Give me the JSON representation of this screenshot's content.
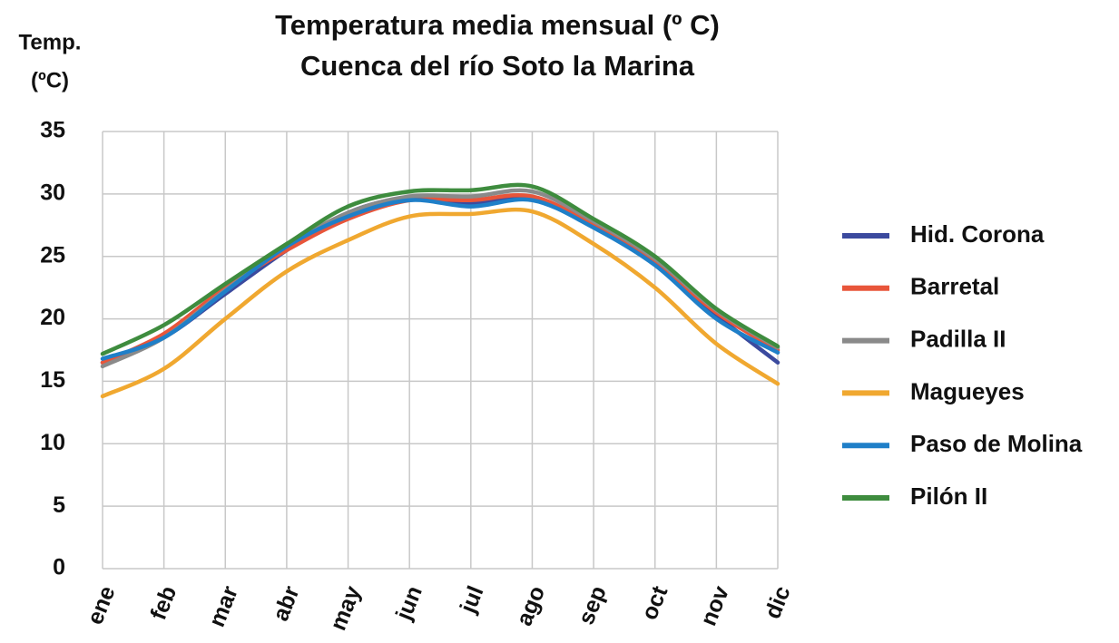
{
  "chart_data": {
    "type": "line",
    "title": [
      "Temperatura media mensual (º C)",
      "Cuenca del río Soto la Marina"
    ],
    "y_label": [
      "Temp.",
      "(ºC)"
    ],
    "categories": [
      "ene",
      "feb",
      "mar",
      "abr",
      "may",
      "jun",
      "jul",
      "ago",
      "sep",
      "oct",
      "nov",
      "dic"
    ],
    "series": [
      {
        "name": "Hid. Corona",
        "color": "#3b4a9e",
        "values": [
          16.5,
          18.5,
          22,
          25.5,
          28.5,
          29.7,
          29.3,
          29.7,
          27.5,
          24.5,
          20.3,
          16.5
        ]
      },
      {
        "name": "Barretal",
        "color": "#e8553a",
        "values": [
          16.5,
          18.8,
          22.5,
          25.5,
          28,
          29.5,
          29.5,
          29.8,
          27.5,
          24.5,
          20.5,
          17.5
        ]
      },
      {
        "name": "Padilla II",
        "color": "#8a8a8a",
        "values": [
          16.2,
          18.5,
          22.3,
          25.8,
          28.5,
          29.8,
          29.8,
          30.2,
          27.8,
          24.8,
          20.7,
          17.7
        ]
      },
      {
        "name": "Magueyes",
        "color": "#f0a830",
        "values": [
          13.8,
          16,
          20,
          23.8,
          26.3,
          28.2,
          28.4,
          28.6,
          26,
          22.5,
          18,
          14.8
        ]
      },
      {
        "name": "Paso de Molina",
        "color": "#1f7fc8",
        "values": [
          16.8,
          18.5,
          22.2,
          25.8,
          28.2,
          29.5,
          29,
          29.5,
          27.3,
          24.3,
          20,
          17.3
        ]
      },
      {
        "name": "Pilón II",
        "color": "#3e8c3e",
        "values": [
          17.2,
          19.5,
          22.8,
          26,
          29,
          30.2,
          30.3,
          30.6,
          28,
          25,
          20.8,
          17.8
        ]
      }
    ],
    "ylim": [
      0,
      35
    ],
    "yticks": [
      0,
      5,
      10,
      15,
      20,
      25,
      30,
      35
    ],
    "grid": true,
    "legend": "right"
  }
}
